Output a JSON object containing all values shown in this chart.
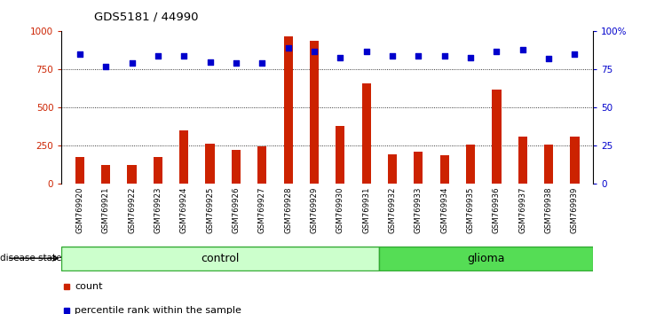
{
  "title": "GDS5181 / 44990",
  "samples": [
    "GSM769920",
    "GSM769921",
    "GSM769922",
    "GSM769923",
    "GSM769924",
    "GSM769925",
    "GSM769926",
    "GSM769927",
    "GSM769928",
    "GSM769929",
    "GSM769930",
    "GSM769931",
    "GSM769932",
    "GSM769933",
    "GSM769934",
    "GSM769935",
    "GSM769936",
    "GSM769937",
    "GSM769938",
    "GSM769939"
  ],
  "counts": [
    175,
    120,
    125,
    175,
    350,
    265,
    220,
    245,
    970,
    940,
    380,
    660,
    195,
    210,
    185,
    255,
    620,
    310,
    255,
    310
  ],
  "percentile_ranks": [
    85,
    77,
    79,
    84,
    84,
    80,
    79,
    79,
    89,
    87,
    83,
    87,
    84,
    84,
    84,
    83,
    87,
    88,
    82,
    85
  ],
  "control_count": 12,
  "glioma_count": 8,
  "bar_color": "#cc2200",
  "dot_color": "#0000cc",
  "control_label": "control",
  "glioma_label": "glioma",
  "disease_state_label": "disease state",
  "legend_count": "count",
  "legend_pct": "percentile rank within the sample",
  "ylim_left": [
    0,
    1000
  ],
  "ylim_right": [
    0,
    100
  ],
  "yticks_left": [
    0,
    250,
    500,
    750,
    1000
  ],
  "ytick_labels_left": [
    "0",
    "250",
    "500",
    "750",
    "1000"
  ],
  "yticks_right": [
    0,
    25,
    50,
    75,
    100
  ],
  "ytick_labels_right": [
    "0",
    "25",
    "50",
    "75",
    "100%"
  ],
  "grid_lines": [
    250,
    500,
    750
  ],
  "control_bg": "#ccffcc",
  "glioma_bg": "#55dd55",
  "tick_bg": "#cccccc"
}
